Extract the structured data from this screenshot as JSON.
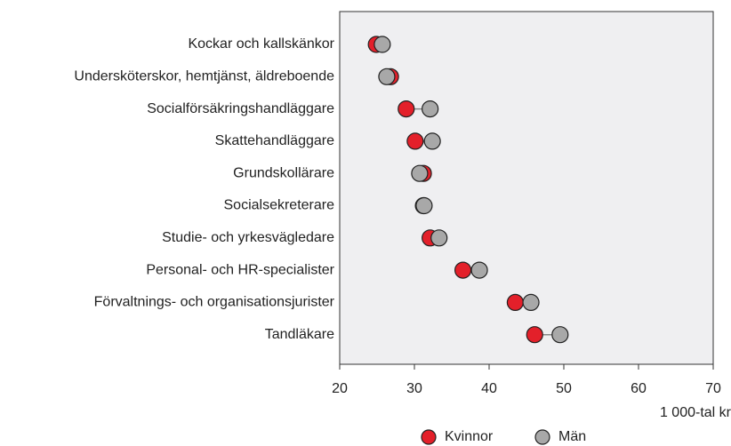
{
  "chart_data": {
    "type": "dot",
    "categories": [
      "Kockar och kallskänkor",
      "Undersköterskor, hemtjänst, äldreboende",
      "Socialförsäkringshandläggare",
      "Skattehandläggare",
      "Grundskollärare",
      "Socialsekreterare",
      "Studie- och yrkesvägledare",
      "Personal- och HR-specialister",
      "Förvaltnings- och organisationsjurister",
      "Tandläkare"
    ],
    "series": [
      {
        "name": "Kvinnor",
        "color": "#e3202a",
        "values": [
          24.9,
          26.8,
          28.9,
          30.1,
          31.2,
          31.2,
          32.1,
          36.5,
          43.5,
          46.1
        ]
      },
      {
        "name": "Män",
        "color": "#a8a8a8",
        "values": [
          25.7,
          26.3,
          32.1,
          32.4,
          30.7,
          31.3,
          33.3,
          38.7,
          45.6,
          49.5
        ]
      }
    ],
    "xlabel": "1 000-tal kr",
    "xlim": [
      20,
      70
    ],
    "xticks": [
      20,
      30,
      40,
      50,
      60,
      70
    ],
    "legend": "bottom"
  }
}
